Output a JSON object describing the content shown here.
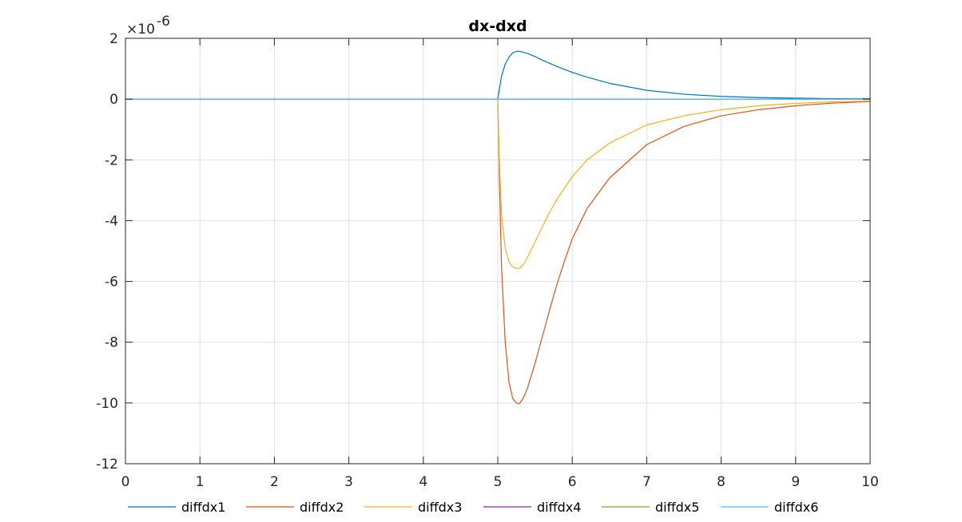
{
  "chart_data": {
    "type": "line",
    "title": "dx-dxd",
    "xlabel": "",
    "ylabel": "",
    "xlim": [
      0,
      10
    ],
    "ylim": [
      -12,
      2
    ],
    "y_multiplier": {
      "base": "10",
      "exponent": "-6"
    },
    "x_ticks": [
      "0",
      "1",
      "2",
      "3",
      "4",
      "5",
      "6",
      "7",
      "8",
      "9",
      "10"
    ],
    "y_ticks": [
      "2",
      "0",
      "-2",
      "-4",
      "-6",
      "-8",
      "-10",
      "-12"
    ],
    "grid": true,
    "legend_placement": "bottom, horizontal",
    "series": [
      {
        "name": "diffdx1",
        "color": "#0072BD",
        "x": [
          0,
          5,
          5.05,
          5.1,
          5.15,
          5.2,
          5.25,
          5.3,
          5.4,
          5.5,
          5.6,
          5.8,
          6.0,
          6.2,
          6.5,
          7.0,
          7.5,
          8.0,
          8.5,
          9.0,
          9.5,
          10
        ],
        "y": [
          0,
          0,
          0.75,
          1.15,
          1.38,
          1.52,
          1.57,
          1.57,
          1.5,
          1.4,
          1.28,
          1.07,
          0.88,
          0.72,
          0.52,
          0.29,
          0.16,
          0.09,
          0.05,
          0.03,
          0.015,
          0.01
        ]
      },
      {
        "name": "diffdx2",
        "color": "#D95319",
        "x": [
          0,
          5,
          5.02,
          5.05,
          5.1,
          5.15,
          5.2,
          5.25,
          5.28,
          5.3,
          5.35,
          5.4,
          5.5,
          5.6,
          5.7,
          5.8,
          5.9,
          6.0,
          6.2,
          6.5,
          7.0,
          7.5,
          8.0,
          8.5,
          9.0,
          9.5,
          10
        ],
        "y": [
          0,
          0,
          -2.5,
          -5.5,
          -8.0,
          -9.3,
          -9.85,
          -10.0,
          -10.03,
          -10.0,
          -9.8,
          -9.5,
          -8.7,
          -7.8,
          -6.9,
          -6.05,
          -5.3,
          -4.6,
          -3.6,
          -2.6,
          -1.5,
          -0.9,
          -0.55,
          -0.35,
          -0.22,
          -0.13,
          -0.08
        ]
      },
      {
        "name": "diffdx3",
        "color": "#EDB120",
        "x": [
          0,
          5,
          5.02,
          5.05,
          5.1,
          5.15,
          5.2,
          5.25,
          5.28,
          5.3,
          5.35,
          5.4,
          5.5,
          5.6,
          5.7,
          5.8,
          6.0,
          6.2,
          6.5,
          7.0,
          7.5,
          8.0,
          8.5,
          9.0,
          9.5,
          10
        ],
        "y": [
          0,
          0,
          -2.0,
          -3.8,
          -4.9,
          -5.35,
          -5.52,
          -5.57,
          -5.57,
          -5.55,
          -5.42,
          -5.2,
          -4.7,
          -4.2,
          -3.7,
          -3.28,
          -2.55,
          -2.0,
          -1.45,
          -0.85,
          -0.55,
          -0.35,
          -0.22,
          -0.14,
          -0.09,
          -0.06
        ]
      },
      {
        "name": "diffdx4",
        "color": "#7E2F8E",
        "x": [
          0,
          10
        ],
        "y": [
          0,
          0
        ]
      },
      {
        "name": "diffdx5",
        "color": "#77AC30",
        "x": [
          0,
          10
        ],
        "y": [
          0,
          0
        ]
      },
      {
        "name": "diffdx6",
        "color": "#4DBEEE",
        "x": [
          0,
          10
        ],
        "y": [
          0,
          0
        ]
      }
    ]
  }
}
